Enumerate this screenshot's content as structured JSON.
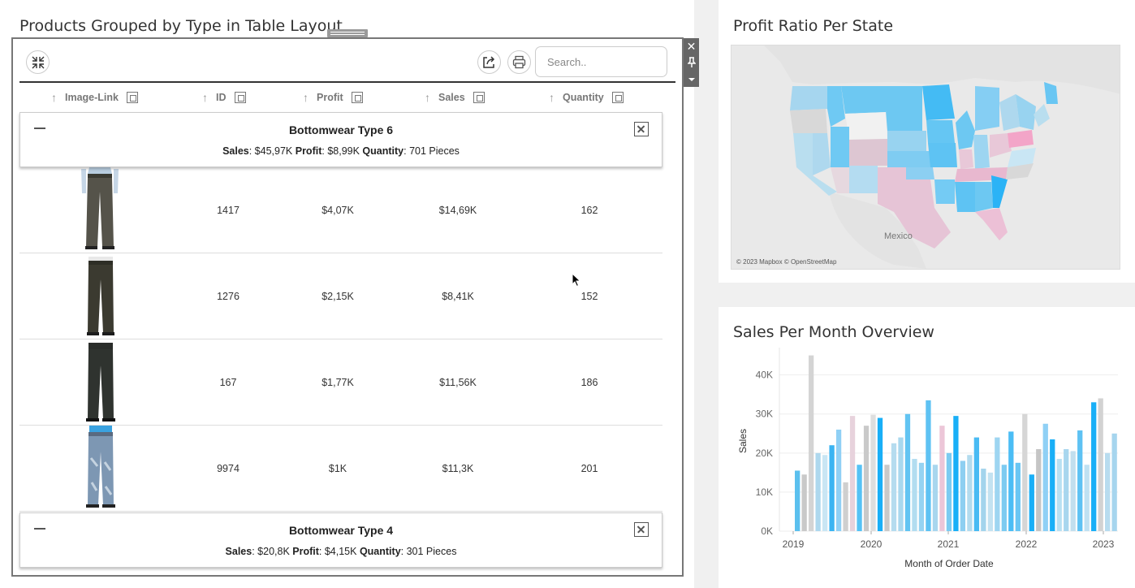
{
  "left": {
    "title": "Products Grouped by Type in Table Layout",
    "search_placeholder": "Search..",
    "columns": [
      "Image-Link",
      "ID",
      "Profit",
      "Sales",
      "Quantity"
    ],
    "groups": [
      {
        "title": "Bottomwear Type 6",
        "sales_label": "Sales",
        "sales_value": ": $45,97K ",
        "profit_label": "Profit",
        "profit_value": ": $8,99K ",
        "quantity_label": "Quantity",
        "quantity_value": ": 701 Pieces",
        "rows": [
          {
            "id": "1417",
            "profit": "$4,07K",
            "sales": "$14,69K",
            "quantity": "162"
          },
          {
            "id": "1276",
            "profit": "$2,15K",
            "sales": "$8,41K",
            "quantity": "152"
          },
          {
            "id": "167",
            "profit": "$1,77K",
            "sales": "$11,56K",
            "quantity": "186"
          },
          {
            "id": "9974",
            "profit": "$1K",
            "sales": "$11,3K",
            "quantity": "201"
          }
        ]
      },
      {
        "title": "Bottomwear Type 4",
        "sales_label": "Sales",
        "sales_value": ": $20,8K ",
        "profit_label": "Profit",
        "profit_value": ": $4,15K ",
        "quantity_label": "Quantity",
        "quantity_value": ": 301 Pieces",
        "rows": []
      }
    ]
  },
  "map": {
    "title": "Profit Ratio Per State",
    "country_label": "Mexico",
    "credit": "© 2023 Mapbox © OpenStreetMap"
  },
  "sales_chart": {
    "title": "Sales Per Month Overview"
  },
  "chart_data": {
    "type": "bar",
    "title": "Sales Per Month Overview",
    "xlabel": "Month of Order Date",
    "ylabel": "Sales",
    "x_ticks": [
      "2019",
      "2020",
      "2021",
      "2022",
      "2023"
    ],
    "y_ticks": [
      "0K",
      "10K",
      "20K",
      "30K",
      "40K"
    ],
    "ylim": [
      0,
      47000
    ],
    "values": [
      15500,
      14500,
      45000,
      20000,
      19500,
      22000,
      26000,
      12500,
      29500,
      17000,
      27000,
      29800,
      29000,
      17000,
      22500,
      24000,
      30000,
      18500,
      17500,
      33500,
      17000,
      27000,
      20000,
      29500,
      18000,
      19500,
      24000,
      16000,
      15000,
      24000,
      17000,
      25500,
      17500,
      30000,
      14500,
      21000,
      27500,
      23500,
      18500,
      21000,
      20500,
      25800,
      17000,
      33000,
      34000,
      20000,
      25000
    ],
    "colors": [
      "#5bc0ee",
      "#c9c9c9",
      "#d4d4d4",
      "#aed8ee",
      "#c9e6f4",
      "#3ab4f2",
      "#8fd0f5",
      "#cfcfcf",
      "#e7d2dc",
      "#55c2f5",
      "#c9c9c9",
      "#dedede",
      "#19aff7",
      "#c9c9c9",
      "#b5dcef",
      "#a9d8ee",
      "#62c4f2",
      "#b2ddf0",
      "#96d3f2",
      "#5ec2f3",
      "#a8d6ee",
      "#ecc6d8",
      "#7ccbf1",
      "#19aff7",
      "#8ecff1",
      "#b3dbee",
      "#49bbf3",
      "#a3d4ec",
      "#c3e2f1",
      "#9ed5f1",
      "#7ccbf1",
      "#4bbdf5",
      "#69c6f3",
      "#d6d6d6",
      "#19aff7",
      "#c5c5c5",
      "#8fd0f5",
      "#19aff7",
      "#b9e0f2",
      "#a8d6ee",
      "#c2dfee",
      "#5ec2f3",
      "#bfe1f2",
      "#19aff7",
      "#d2d2d2",
      "#b8dcef",
      "#a6d5ee"
    ]
  }
}
